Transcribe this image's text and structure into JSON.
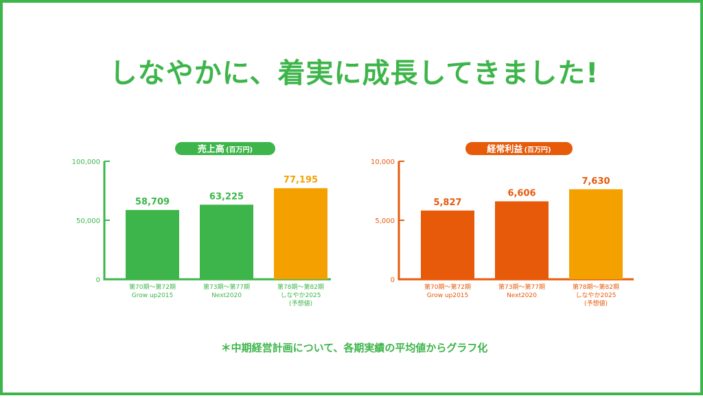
{
  "headline": "しなやかに、着実に成長してきました!",
  "footnote": "＊中期経営計画について、各期実績の平均値からグラフ化",
  "colors": {
    "green": "#3db54a",
    "orange": "#e65a0a",
    "amber": "#f4a100",
    "border": "#3db54a"
  },
  "chart_data": [
    {
      "type": "bar",
      "title": "売上高",
      "unit": "(百万円)",
      "categories": [
        [
          "第70期〜第72期",
          "Grow up2015"
        ],
        [
          "第73期〜第77期",
          "Next2020"
        ],
        [
          "第78期〜第82期",
          "しなやか2025",
          "(予想値)"
        ]
      ],
      "values": [
        58709,
        63225,
        77195
      ],
      "value_labels": [
        "58,709",
        "63,225",
        "77,195"
      ],
      "bar_colors": [
        "#3db54a",
        "#3db54a",
        "#f4a100"
      ],
      "axis_color": "#3db54a",
      "ylim": [
        0,
        100000
      ],
      "yticks": [
        0,
        50000,
        100000
      ],
      "ytick_labels": [
        "0",
        "50,000",
        "100,000"
      ],
      "grid": false
    },
    {
      "type": "bar",
      "title": "経常利益",
      "unit": "(百万円)",
      "categories": [
        [
          "第70期〜第72期",
          "Grow up2015"
        ],
        [
          "第73期〜第77期",
          "Next2020"
        ],
        [
          "第78期〜第82期",
          "しなやか2025",
          "(予想値)"
        ]
      ],
      "values": [
        5827,
        6606,
        7630
      ],
      "value_labels": [
        "5,827",
        "6,606",
        "7,630"
      ],
      "bar_colors": [
        "#e65a0a",
        "#e65a0a",
        "#f4a100"
      ],
      "axis_color": "#e65a0a",
      "ylim": [
        0,
        10000
      ],
      "yticks": [
        0,
        5000,
        10000
      ],
      "ytick_labels": [
        "0",
        "5,000",
        "10,000"
      ],
      "grid": false
    }
  ]
}
